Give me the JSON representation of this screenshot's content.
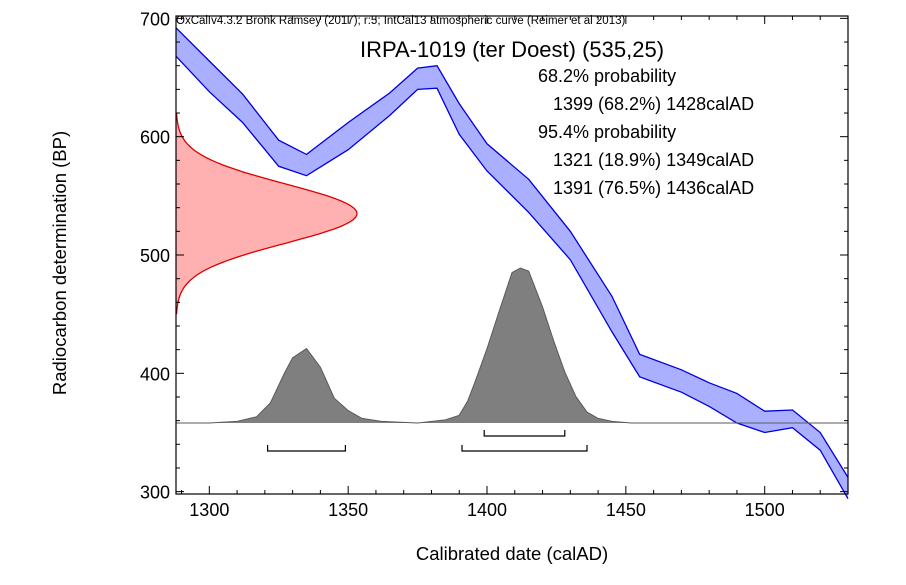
{
  "header": {
    "software": "OxCal v4.3.2 Bronk Ramsey (2017); r:5; IntCal13 atmospheric curve (Reimer et al 2013)"
  },
  "chart_data": {
    "type": "area",
    "title": "IRPA-1019 (ter Doest) (535,25)",
    "xlabel": "Calibrated date (calAD)",
    "ylabel": "Radiocarbon determination (BP)",
    "xlim": [
      1288,
      1530
    ],
    "ylim": [
      298,
      702
    ],
    "x_ticks": [
      1300,
      1350,
      1400,
      1450,
      1500
    ],
    "y_ticks": [
      300,
      400,
      500,
      600,
      700
    ],
    "ranges": {
      "p68_label": "68.2% probability",
      "p68": [
        {
          "text": "1399 (68.2%) 1428calAD",
          "from": 1399,
          "to": 1428
        }
      ],
      "p95_label": "95.4% probability",
      "p95": [
        {
          "text": "1321 (18.9%) 1349calAD",
          "from": 1321,
          "to": 1349
        },
        {
          "text": "1391 (76.5%) 1436calAD",
          "from": 1391,
          "to": 1436
        }
      ]
    },
    "calibration_curve": {
      "color": "#0000dd",
      "fill": "#aab0ff",
      "x": [
        1288,
        1300,
        1312,
        1325,
        1335,
        1350,
        1365,
        1375,
        1382,
        1390,
        1400,
        1415,
        1430,
        1445,
        1455,
        1470,
        1480,
        1490,
        1500,
        1510,
        1520,
        1530
      ],
      "upper": [
        692,
        664,
        636,
        597,
        585,
        612,
        637,
        658,
        660,
        628,
        594,
        564,
        520,
        465,
        416,
        403,
        392,
        383,
        368,
        369,
        350,
        312
      ],
      "lower": [
        668,
        638,
        612,
        575,
        567,
        589,
        618,
        640,
        641,
        602,
        571,
        536,
        496,
        435,
        397,
        384,
        372,
        358,
        350,
        354,
        335,
        294
      ]
    },
    "radiocarbon_distribution": {
      "color": "#dd0000",
      "fill": "#ffb0b0",
      "mean": 535,
      "sigma": 25
    },
    "posterior_distribution": {
      "fill": "#7f7f7f",
      "x": [
        1288,
        1300,
        1310,
        1317,
        1322,
        1327,
        1330,
        1335,
        1340,
        1345,
        1350,
        1355,
        1362,
        1375,
        1385,
        1390,
        1393,
        1396,
        1400,
        1404,
        1409,
        1412,
        1415,
        1420,
        1424,
        1428,
        1432,
        1436,
        1440,
        1445,
        1452,
        1530
      ],
      "density": [
        0,
        0,
        0.01,
        0.04,
        0.13,
        0.32,
        0.42,
        0.48,
        0.36,
        0.16,
        0.08,
        0.03,
        0.01,
        0.0,
        0.02,
        0.05,
        0.14,
        0.28,
        0.48,
        0.7,
        0.97,
        1.0,
        0.98,
        0.75,
        0.53,
        0.33,
        0.17,
        0.07,
        0.03,
        0.01,
        0,
        0
      ]
    }
  }
}
